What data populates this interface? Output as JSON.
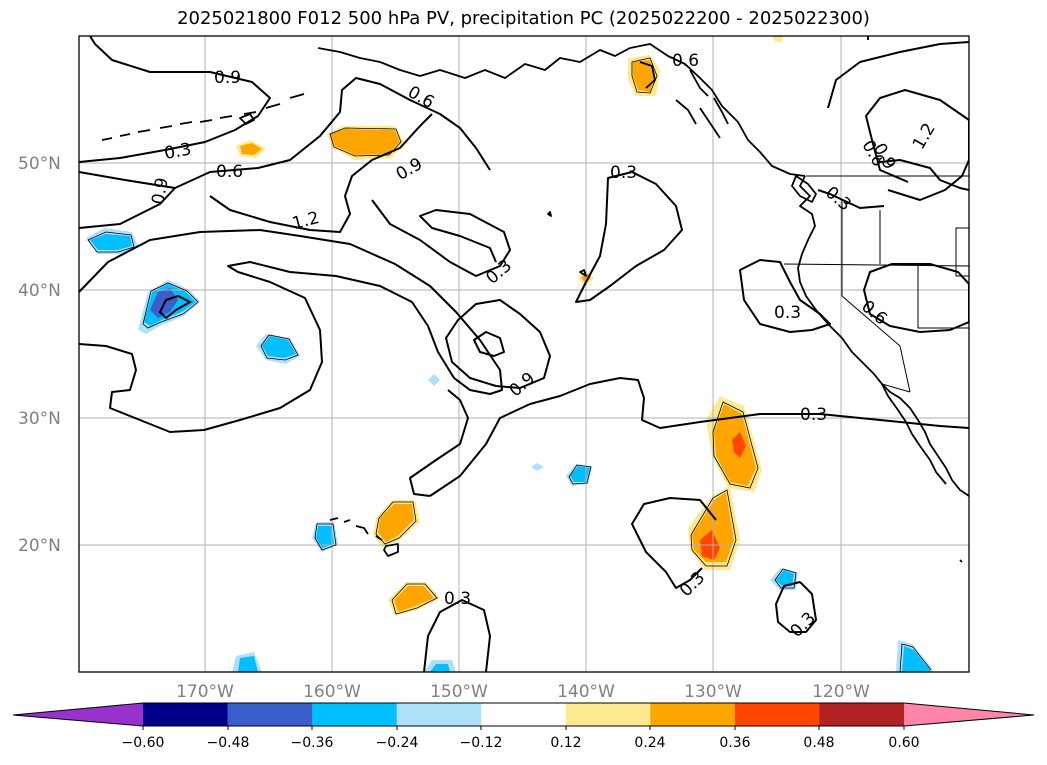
{
  "title": "2025021800 F012 500 hPa PV, precipitation PC (2025022200 - 2025022300)",
  "map": {
    "lat_labels": [
      "50°N",
      "40°N",
      "30°N",
      "20°N"
    ],
    "lon_labels": [
      "170°W",
      "160°W",
      "150°W",
      "140°W",
      "130°W",
      "120°W"
    ],
    "contour_labels": [
      "0.9",
      "0.6",
      "0.3",
      "0.6",
      "0.9",
      "1.2",
      "0.9",
      "0.3",
      "0.3",
      "0.9",
      "0.6",
      "0.9",
      "0.6",
      "1.2",
      "0.3",
      "0.6",
      "0.3",
      "0.3",
      "0.3",
      "0.3",
      "0.3",
      "0.3"
    ]
  },
  "colorbar": {
    "ticks": [
      "−0.60",
      "−0.48",
      "−0.36",
      "−0.24",
      "−0.12",
      "0.12",
      "0.24",
      "0.36",
      "0.48",
      "0.60"
    ],
    "colors": [
      "#9932cc",
      "#00008b",
      "#3a5fcd",
      "#00bfff",
      "#afe0fa",
      "#ffffff",
      "#fde98f",
      "#ffa500",
      "#ff4500",
      "#b22222",
      "#ff85a8"
    ]
  },
  "colors": {
    "frame": "#000000",
    "grid": "#b0b0b0",
    "coast": "#000000"
  }
}
